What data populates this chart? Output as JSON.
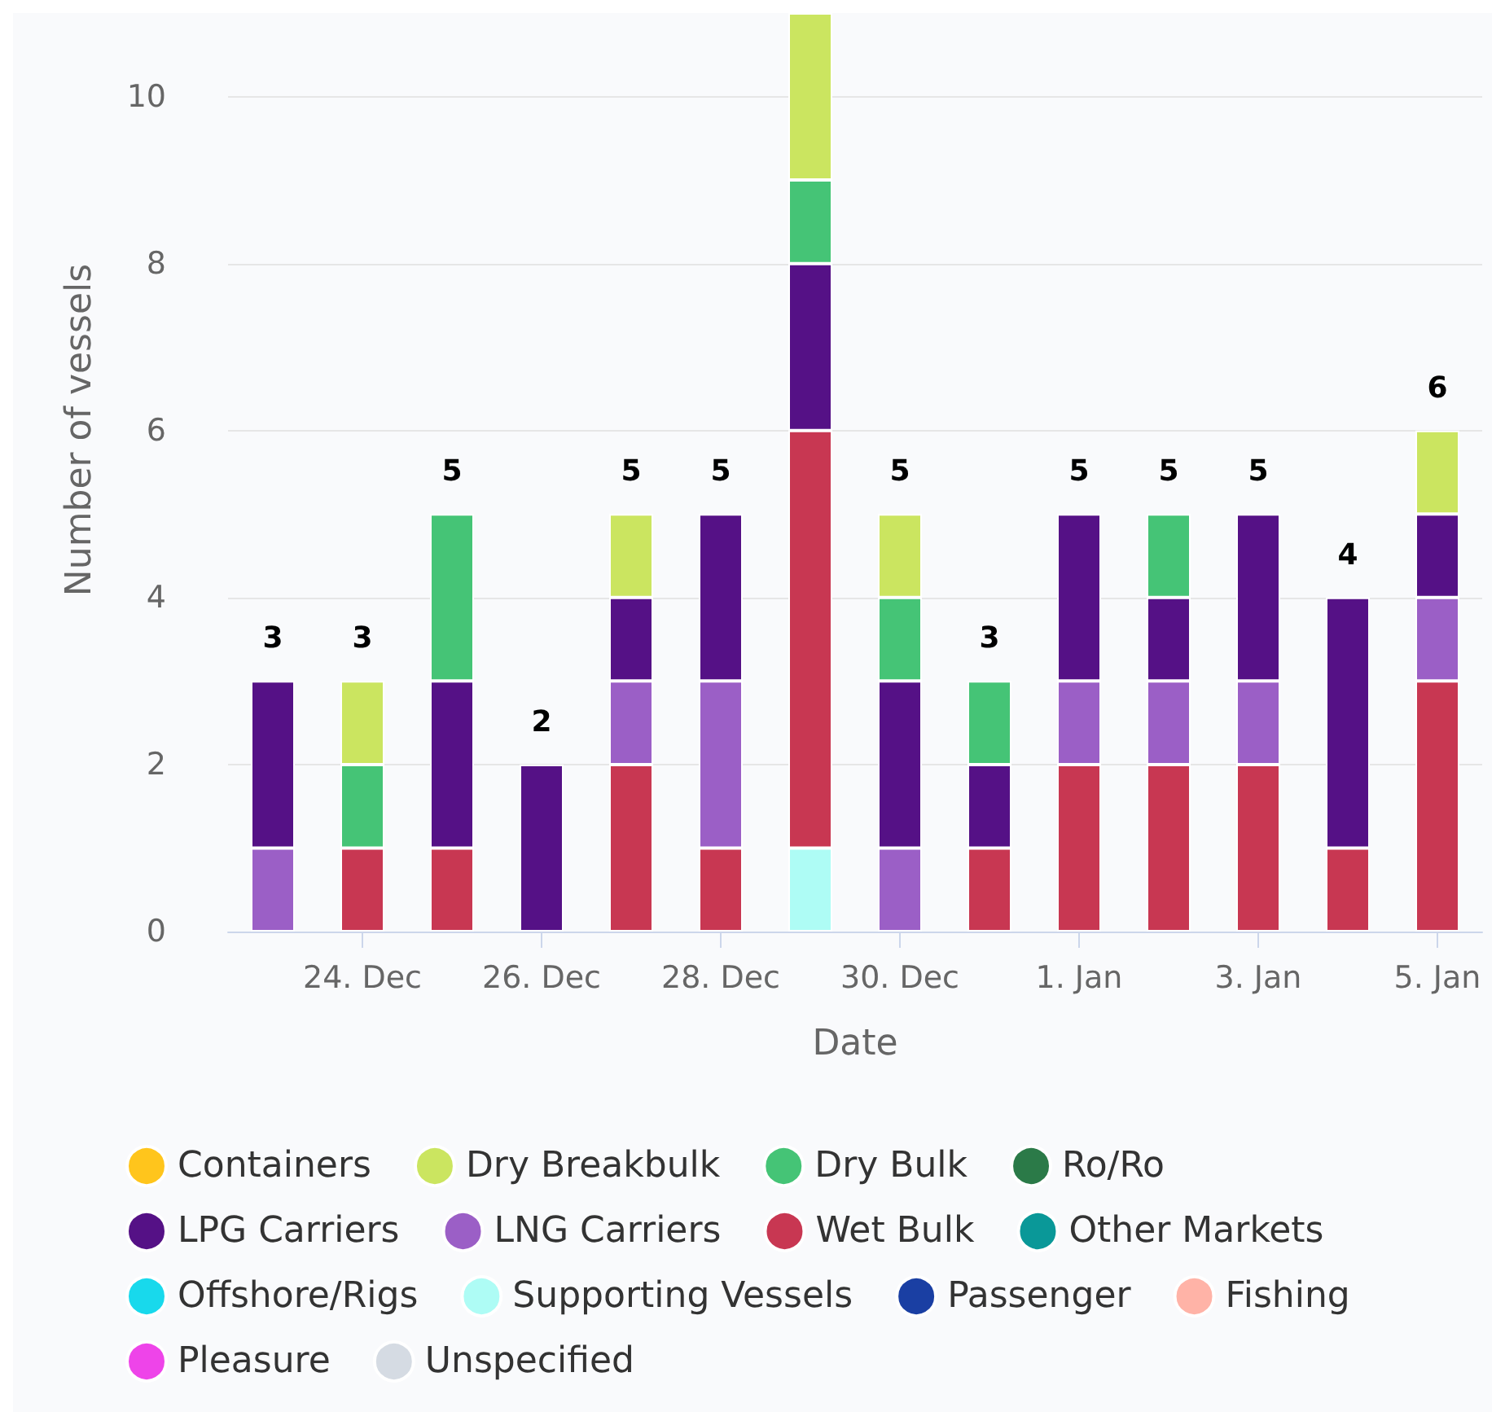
{
  "chart_data": {
    "type": "bar",
    "stacked": true,
    "xlabel": "Date",
    "ylabel": "Number of vessels",
    "categories": [
      null,
      "24. Dec",
      null,
      "26. Dec",
      null,
      "28. Dec",
      null,
      "30. Dec",
      null,
      "1. Jan",
      null,
      "3. Jan",
      null,
      "5. Jan"
    ],
    "ylim": [
      0,
      11
    ],
    "yticks": [
      0,
      2,
      4,
      6,
      8,
      10
    ],
    "grid": "y",
    "legend": "bottom",
    "totals": [
      "3",
      "3",
      "5",
      "2",
      "5",
      "5",
      null,
      "5",
      "3",
      "5",
      "5",
      "5",
      "4",
      "6"
    ],
    "series": [
      {
        "name": "Unspecified",
        "color": "#d5dbe3",
        "values": [
          0,
          0,
          0,
          0,
          0,
          0,
          0,
          0,
          0,
          0,
          0,
          0,
          0,
          0
        ]
      },
      {
        "name": "Pleasure",
        "color": "#ee44e9",
        "values": [
          0,
          0,
          0,
          0,
          0,
          0,
          0,
          0,
          0,
          0,
          0,
          0,
          0,
          0
        ]
      },
      {
        "name": "Fishing",
        "color": "#ffb3a7",
        "values": [
          0,
          0,
          0,
          0,
          0,
          0,
          0,
          0,
          0,
          0,
          0,
          0,
          0,
          0
        ]
      },
      {
        "name": "Passenger",
        "color": "#1a3fa3",
        "values": [
          0,
          0,
          0,
          0,
          0,
          0,
          0,
          0,
          0,
          0,
          0,
          0,
          0,
          0
        ]
      },
      {
        "name": "Supporting Vessels",
        "color": "#aefcf5",
        "values": [
          0,
          0,
          0,
          0,
          0,
          0,
          1,
          0,
          0,
          0,
          0,
          0,
          0,
          0
        ]
      },
      {
        "name": "Offshore/Rigs",
        "color": "#18d9ec",
        "values": [
          0,
          0,
          0,
          0,
          0,
          0,
          0,
          0,
          0,
          0,
          0,
          0,
          0,
          0
        ]
      },
      {
        "name": "Other Markets",
        "color": "#0a9898",
        "values": [
          0,
          0,
          0,
          0,
          0,
          0,
          0,
          0,
          0,
          0,
          0,
          0,
          0,
          0
        ]
      },
      {
        "name": "Wet Bulk",
        "color": "#c83752",
        "values": [
          0,
          1,
          1,
          0,
          2,
          1,
          5,
          0,
          1,
          2,
          2,
          2,
          1,
          3
        ]
      },
      {
        "name": "LNG Carriers",
        "color": "#9b5fc6",
        "values": [
          1,
          0,
          0,
          0,
          1,
          2,
          0,
          1,
          0,
          1,
          1,
          1,
          0,
          1
        ]
      },
      {
        "name": "LPG Carriers",
        "color": "#551186",
        "values": [
          2,
          0,
          2,
          2,
          1,
          2,
          2,
          2,
          1,
          2,
          1,
          2,
          3,
          1
        ]
      },
      {
        "name": "Ro/Ro",
        "color": "#2b7a48",
        "values": [
          0,
          0,
          0,
          0,
          0,
          0,
          0,
          0,
          0,
          0,
          0,
          0,
          0,
          0
        ]
      },
      {
        "name": "Dry Bulk",
        "color": "#45c476",
        "values": [
          0,
          1,
          2,
          0,
          0,
          0,
          1,
          1,
          1,
          0,
          1,
          0,
          0,
          0
        ]
      },
      {
        "name": "Dry Breakbulk",
        "color": "#cbe560",
        "values": [
          0,
          1,
          0,
          0,
          1,
          0,
          2,
          1,
          0,
          0,
          0,
          0,
          0,
          1
        ]
      },
      {
        "name": "Containers",
        "color": "#ffc51c",
        "values": [
          0,
          0,
          0,
          0,
          0,
          0,
          0,
          0,
          0,
          0,
          0,
          0,
          0,
          0
        ]
      }
    ]
  }
}
